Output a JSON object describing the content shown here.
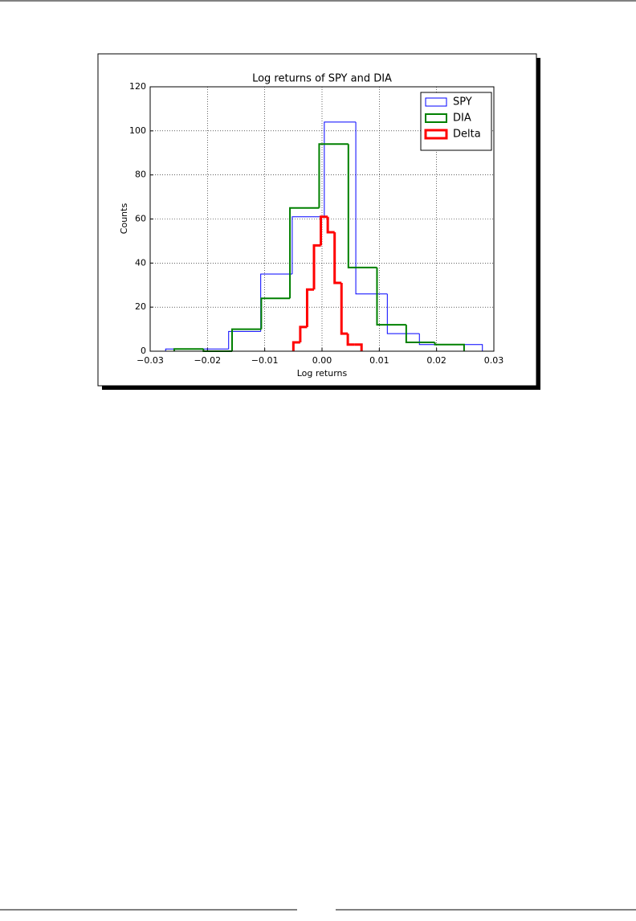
{
  "chart_data": {
    "type": "step-histogram",
    "title": "Log returns of SPY and DIA",
    "xlabel": "Log returns",
    "ylabel": "Counts",
    "xlim": [
      -0.03,
      0.03
    ],
    "xticks": [
      {
        "value": -0.03,
        "label": "−0.03"
      },
      {
        "value": -0.02,
        "label": "−0.02"
      },
      {
        "value": -0.01,
        "label": "−0.01"
      },
      {
        "value": 0,
        "label": "0.00"
      },
      0.01,
      0.02,
      0.03
    ],
    "ylim": [
      0,
      120
    ],
    "yticks": [
      0,
      20,
      40,
      60,
      80,
      100,
      120
    ],
    "grid": true,
    "legend": "upper right",
    "series": [
      {
        "name": "SPY",
        "color": "#0000ff",
        "line_width": 1,
        "bins": [
          -0.0273,
          -0.0218,
          -0.0163,
          -0.0107,
          -0.0052,
          0.0004,
          0.0059,
          0.0114,
          0.017,
          0.0225,
          0.028
        ],
        "values": [
          1,
          1,
          9,
          35,
          61,
          104,
          26,
          8,
          3,
          3
        ]
      },
      {
        "name": "DIA",
        "color": "#008000",
        "line_width": 2,
        "bins": [
          -0.0258,
          -0.0207,
          -0.0157,
          -0.0106,
          -0.0056,
          -0.0005,
          0.0046,
          0.0096,
          0.0147,
          0.0197,
          0.0248
        ],
        "values": [
          1,
          0,
          10,
          24,
          65,
          94,
          38,
          12,
          4,
          3
        ]
      },
      {
        "name": "Delta",
        "color": "#ff0000",
        "line_width": 3,
        "bins": [
          -0.005,
          -0.0038,
          -0.0026,
          -0.0014,
          -0.0002,
          0.001,
          0.0022,
          0.0034,
          0.0045,
          0.0057,
          0.0069
        ],
        "values": [
          4,
          11,
          28,
          48,
          61,
          54,
          31,
          8,
          3,
          3
        ]
      }
    ]
  }
}
